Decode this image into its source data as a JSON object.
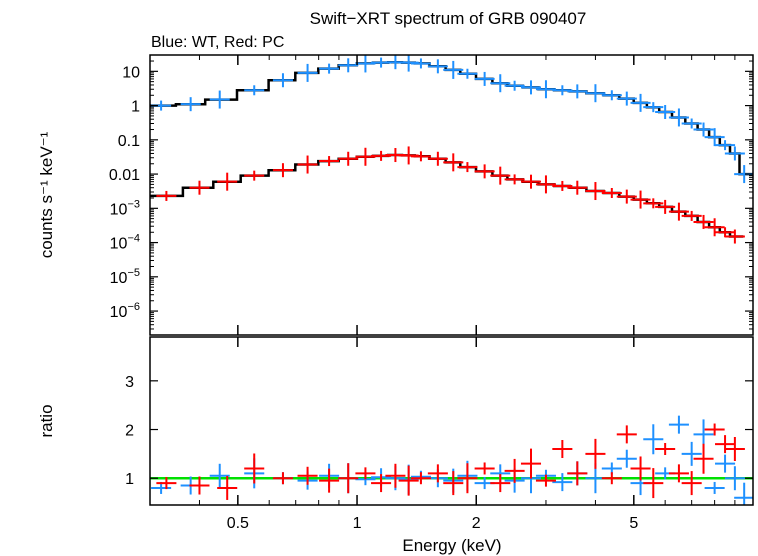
{
  "chart_data": {
    "type": "scatter",
    "title": "Swift−XRT spectrum of GRB 090407",
    "subtitle": "Blue: WT, Red: PC",
    "xlabel": "Energy (keV)",
    "x_scale": "log",
    "xlim": [
      0.3,
      10
    ],
    "x_ticks": [
      0.5,
      1,
      2,
      5
    ],
    "x_tick_labels": [
      "0.5",
      "1",
      "2",
      "5"
    ],
    "colors": {
      "wt": "#1e90ff",
      "pc": "#ff0000",
      "model": "#000000",
      "unity": "#00e000"
    },
    "panels": [
      {
        "name": "spectrum",
        "ylabel": "counts s⁻¹ keV⁻¹",
        "y_scale": "log",
        "ylim": [
          2e-07,
          30
        ],
        "y_ticks": [
          1e-06,
          1e-05,
          0.0001,
          0.001,
          0.01,
          0.1,
          1,
          10
        ],
        "y_tick_labels": [
          {
            "base": "10",
            "exp": "−6"
          },
          {
            "base": "10",
            "exp": "−5"
          },
          {
            "base": "10",
            "exp": "−4"
          },
          {
            "base": "10",
            "exp": "−3"
          },
          {
            "base": "0.01",
            "exp": ""
          },
          {
            "base": "0.1",
            "exp": ""
          },
          {
            "base": "1",
            "exp": ""
          },
          {
            "base": "10",
            "exp": ""
          }
        ],
        "series": [
          {
            "name": "WT",
            "color": "#1e90ff",
            "x": [
              0.32,
              0.38,
              0.45,
              0.55,
              0.65,
              0.75,
              0.85,
              0.95,
              1.05,
              1.15,
              1.25,
              1.35,
              1.45,
              1.6,
              1.75,
              1.9,
              2.1,
              2.3,
              2.5,
              2.75,
              3.0,
              3.3,
              3.6,
              4.0,
              4.4,
              4.8,
              5.2,
              5.6,
              6.0,
              6.5,
              7.0,
              7.5,
              8.0,
              8.5,
              9.0,
              9.5
            ],
            "y": [
              1.0,
              1.1,
              1.5,
              2.8,
              5.5,
              9.0,
              12,
              15,
              17,
              18,
              18.5,
              18,
              17,
              14,
              11,
              8.5,
              6.0,
              4.5,
              3.8,
              3.4,
              3.0,
              2.8,
              2.6,
              2.3,
              2.0,
              1.6,
              1.2,
              0.9,
              0.65,
              0.45,
              0.3,
              0.2,
              0.12,
              0.07,
              0.04,
              0.01
            ]
          },
          {
            "name": "PC",
            "color": "#ff0000",
            "x": [
              0.33,
              0.4,
              0.47,
              0.55,
              0.65,
              0.75,
              0.85,
              0.95,
              1.05,
              1.15,
              1.25,
              1.35,
              1.45,
              1.6,
              1.75,
              1.9,
              2.1,
              2.3,
              2.5,
              2.75,
              3.0,
              3.3,
              3.6,
              4.0,
              4.4,
              4.8,
              5.2,
              5.6,
              6.0,
              6.5,
              7.0,
              7.5,
              8.0,
              8.5,
              9.0
            ],
            "y": [
              0.0023,
              0.004,
              0.006,
              0.009,
              0.013,
              0.019,
              0.024,
              0.028,
              0.032,
              0.034,
              0.036,
              0.035,
              0.033,
              0.028,
              0.022,
              0.016,
              0.012,
              0.009,
              0.007,
              0.006,
              0.005,
              0.0045,
              0.004,
              0.0032,
              0.0028,
              0.0022,
              0.0018,
              0.0014,
              0.0011,
              0.0008,
              0.0006,
              0.0004,
              0.00028,
              0.0002,
              0.00015
            ]
          }
        ]
      },
      {
        "name": "ratio",
        "ylabel": "ratio",
        "y_scale": "linear",
        "ylim": [
          0.45,
          3.9
        ],
        "y_ticks": [
          1,
          2,
          3
        ],
        "y_tick_labels": [
          "1",
          "2",
          "3"
        ],
        "reference_line": 1,
        "series": [
          {
            "name": "WT",
            "color": "#1e90ff",
            "x": [
              0.32,
              0.38,
              0.45,
              0.55,
              0.65,
              0.75,
              0.85,
              0.95,
              1.05,
              1.15,
              1.25,
              1.35,
              1.45,
              1.6,
              1.75,
              1.9,
              2.1,
              2.3,
              2.5,
              2.75,
              3.0,
              3.3,
              3.6,
              4.0,
              4.4,
              4.8,
              5.2,
              5.6,
              6.0,
              6.5,
              7.0,
              7.5,
              8.0,
              8.5,
              9.0,
              9.5
            ],
            "y": [
              0.8,
              0.85,
              1.05,
              1.1,
              1.0,
              0.95,
              1.05,
              1.0,
              0.98,
              1.02,
              1.0,
              0.97,
              1.03,
              1.0,
              0.95,
              1.05,
              0.9,
              1.1,
              0.95,
              1.0,
              1.05,
              0.92,
              1.1,
              1.0,
              1.2,
              1.4,
              0.9,
              1.8,
              1.1,
              2.1,
              1.5,
              1.9,
              0.8,
              1.3,
              1.0,
              0.6
            ]
          },
          {
            "name": "PC",
            "color": "#ff0000",
            "x": [
              0.33,
              0.4,
              0.47,
              0.55,
              0.65,
              0.75,
              0.85,
              0.95,
              1.05,
              1.15,
              1.25,
              1.35,
              1.45,
              1.6,
              1.75,
              1.9,
              2.1,
              2.3,
              2.5,
              2.75,
              3.0,
              3.3,
              3.6,
              4.0,
              4.4,
              4.8,
              5.2,
              5.6,
              6.0,
              6.5,
              7.0,
              7.5,
              8.0,
              8.5,
              9.0
            ],
            "y": [
              0.9,
              0.85,
              0.8,
              1.2,
              1.0,
              1.05,
              0.95,
              1.0,
              1.1,
              0.9,
              1.05,
              0.95,
              1.0,
              1.1,
              0.9,
              1.0,
              1.2,
              0.9,
              1.15,
              1.3,
              0.95,
              1.6,
              1.1,
              1.5,
              1.0,
              1.9,
              1.2,
              0.9,
              1.6,
              1.1,
              0.9,
              1.4,
              2.0,
              1.7,
              1.6
            ]
          }
        ]
      }
    ]
  }
}
